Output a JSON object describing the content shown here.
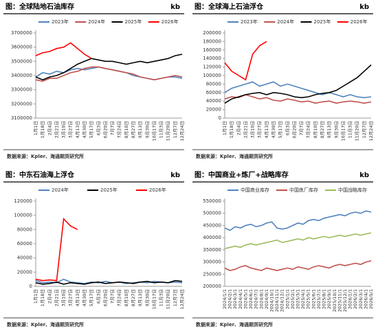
{
  "chart_data": [
    {
      "type": "line",
      "title": "图：全球陆地石油库存",
      "unit": "kb",
      "source": "数据来源：Kpler、海通期货研究所",
      "categories": [
        "1月1日",
        "1月18日",
        "2月4日",
        "2月21日",
        "3月10日",
        "3月27日",
        "4月13日",
        "4月30日",
        "5月17日",
        "6月3日",
        "6月20日",
        "7月7日",
        "7月24日",
        "8月10日",
        "8月27日",
        "9月13日",
        "9月30日",
        "10月17日",
        "11月3日",
        "11月20日",
        "12月7日",
        "12月24日"
      ],
      "ylim": [
        3100000,
        3700000
      ],
      "yticks": [
        3100000,
        3200000,
        3300000,
        3400000,
        3500000,
        3600000,
        3700000
      ],
      "series": [
        {
          "name": "2023年",
          "color": "#4f81bd",
          "values": [
            3390000,
            3420000,
            3410000,
            3430000,
            3420000,
            3440000,
            3450000,
            3440000,
            3450000,
            3460000,
            3450000,
            3440000,
            3430000,
            3420000,
            3400000,
            3390000,
            3380000,
            3370000,
            3380000,
            3390000,
            3390000,
            3380000
          ]
        },
        {
          "name": "2024年",
          "color": "#c0504d",
          "values": [
            3370000,
            3360000,
            3380000,
            3380000,
            3400000,
            3420000,
            3430000,
            3450000,
            3460000,
            3460000,
            3450000,
            3440000,
            3430000,
            3420000,
            3410000,
            3390000,
            3380000,
            3370000,
            3380000,
            3390000,
            3400000,
            3390000
          ]
        },
        {
          "name": "2025年",
          "color": "#000000",
          "values": [
            3390000,
            3370000,
            3390000,
            3400000,
            3420000,
            3450000,
            3480000,
            3500000,
            3520000,
            3510000,
            3500000,
            3500000,
            3490000,
            3480000,
            3490000,
            3500000,
            3490000,
            3500000,
            3510000,
            3520000,
            3540000,
            3550000
          ]
        },
        {
          "name": "2026年",
          "color": "#ff0000",
          "values": [
            3540000,
            3560000,
            3570000,
            3590000,
            3600000,
            3630000,
            3590000,
            3550000,
            3520000,
            null,
            null,
            null,
            null,
            null,
            null,
            null,
            null,
            null,
            null,
            null,
            null,
            null
          ]
        }
      ]
    },
    {
      "type": "line",
      "title": "图：全球海上石油浮仓",
      "unit": "kb",
      "source": "数据来源：Kpler、海通期货研究所",
      "categories": [
        "1月1日",
        "1月18日",
        "2月4日",
        "2月21日",
        "3月10日",
        "3月27日",
        "4月13日",
        "4月30日",
        "5月17日",
        "6月3日",
        "6月20日",
        "7月7日",
        "7月24日",
        "8月10日",
        "8月27日",
        "9月13日",
        "9月30日",
        "10月17日",
        "11月3日",
        "11月20日",
        "12月7日",
        "12月24日"
      ],
      "ylim": [
        0,
        200000
      ],
      "yticks": [
        0,
        20000,
        40000,
        60000,
        80000,
        100000,
        120000,
        140000,
        160000,
        180000,
        200000
      ],
      "series": [
        {
          "name": "2023年",
          "color": "#4f81bd",
          "values": [
            60000,
            70000,
            75000,
            80000,
            85000,
            75000,
            80000,
            85000,
            75000,
            80000,
            75000,
            70000,
            65000,
            60000,
            55000,
            60000,
            55000,
            50000,
            55000,
            50000,
            48000,
            50000
          ]
        },
        {
          "name": "2024年",
          "color": "#c0504d",
          "values": [
            45000,
            50000,
            48000,
            55000,
            50000,
            45000,
            48000,
            42000,
            40000,
            45000,
            42000,
            38000,
            40000,
            35000,
            38000,
            40000,
            35000,
            38000,
            40000,
            38000,
            35000,
            38000
          ]
        },
        {
          "name": "2025年",
          "color": "#000000",
          "values": [
            35000,
            45000,
            50000,
            55000,
            58000,
            60000,
            55000,
            60000,
            58000,
            55000,
            50000,
            48000,
            50000,
            55000,
            58000,
            60000,
            65000,
            75000,
            85000,
            95000,
            110000,
            125000
          ]
        },
        {
          "name": "2026年",
          "color": "#ff0000",
          "values": [
            130000,
            110000,
            100000,
            90000,
            150000,
            170000,
            180000,
            null,
            null,
            null,
            null,
            null,
            null,
            null,
            null,
            null,
            null,
            null,
            null,
            null,
            null,
            null
          ]
        }
      ]
    },
    {
      "type": "line",
      "title": "图：中东石油海上浮仓",
      "unit": "kb",
      "source": "数据来源：Kpler、海通期货研究所",
      "categories": [
        "1月1日",
        "1月18日",
        "2月4日",
        "2月21日",
        "3月10日",
        "3月27日",
        "4月13日",
        "4月30日",
        "5月17日",
        "6月3日",
        "6月20日",
        "7月7日",
        "7月24日",
        "8月10日",
        "8月27日",
        "9月13日",
        "9月30日",
        "10月17日",
        "11月3日",
        "11月20日",
        "12月7日",
        "12月24日"
      ],
      "ylim": [
        0,
        120000
      ],
      "yticks": [
        0,
        20000,
        40000,
        60000,
        80000,
        100000,
        120000
      ],
      "series": [
        {
          "name": "2024年",
          "color": "#4f81bd",
          "values": [
            8000,
            5000,
            6000,
            5000,
            10000,
            6000,
            5000,
            4000,
            6000,
            5000,
            7000,
            5000,
            6000,
            4000,
            5000,
            6000,
            5000,
            7000,
            6000,
            5000,
            6000,
            5000
          ]
        },
        {
          "name": "2025年",
          "color": "#000000",
          "values": [
            5000,
            3000,
            4000,
            6000,
            3000,
            5000,
            4000,
            3000,
            5000,
            6000,
            4000,
            5000,
            6000,
            5000,
            4000,
            6000,
            7000,
            5000,
            6000,
            5000,
            8000,
            7000
          ]
        },
        {
          "name": "2026年",
          "color": "#ff0000",
          "values": [
            10000,
            8000,
            9000,
            8000,
            95000,
            85000,
            80000,
            null,
            null,
            null,
            null,
            null,
            null,
            null,
            null,
            null,
            null,
            null,
            null,
            null,
            null,
            null
          ]
        }
      ]
    },
    {
      "type": "line",
      "title": "图：中国商业+炼厂+战略库存",
      "unit": "kb",
      "source": "数据来源：Kpler、海通期货研究所",
      "categories": [
        "2024/1/1",
        "2024/2/1",
        "2024/3/1",
        "2024/4/1",
        "2024/5/1",
        "2024/6/1",
        "2024/7/1",
        "2024/8/1",
        "2024/9/1",
        "2024/10/1",
        "2024/11/1",
        "2024/12/1",
        "2025/1/1",
        "2025/2/1",
        "2025/3/1",
        "2025/4/1",
        "2025/5/1",
        "2025/6/1",
        "2025/7/1",
        "2025/8/1",
        "2025/9/1",
        "2025/10/1",
        "2025/11/1",
        "2025/12/1",
        "2026/1/1",
        "2026/2/1",
        "2026/3/1",
        "2026/4/1",
        "2026/5/1"
      ],
      "ylim": [
        200000,
        550000
      ],
      "yticks": [
        200000,
        250000,
        300000,
        350000,
        400000,
        450000,
        500000,
        550000
      ],
      "series": [
        {
          "name": "中国商业库存",
          "color": "#4f81bd",
          "values": [
            440000,
            430000,
            445000,
            440000,
            450000,
            455000,
            445000,
            450000,
            460000,
            465000,
            440000,
            435000,
            440000,
            450000,
            460000,
            455000,
            470000,
            475000,
            470000,
            480000,
            485000,
            490000,
            495000,
            490000,
            500000,
            505000,
            500000,
            510000,
            505000
          ]
        },
        {
          "name": "中国炼厂库存",
          "color": "#c0504d",
          "values": [
            275000,
            265000,
            270000,
            280000,
            285000,
            275000,
            270000,
            265000,
            275000,
            270000,
            265000,
            270000,
            275000,
            270000,
            280000,
            275000,
            270000,
            280000,
            285000,
            280000,
            275000,
            285000,
            290000,
            285000,
            290000,
            295000,
            290000,
            300000,
            305000
          ]
        },
        {
          "name": "中国战略库存",
          "color": "#9bbb59",
          "values": [
            355000,
            360000,
            365000,
            360000,
            370000,
            375000,
            370000,
            375000,
            380000,
            385000,
            390000,
            380000,
            385000,
            390000,
            395000,
            390000,
            400000,
            395000,
            400000,
            405000,
            400000,
            405000,
            410000,
            405000,
            410000,
            415000,
            410000,
            415000,
            420000
          ]
        }
      ]
    }
  ]
}
